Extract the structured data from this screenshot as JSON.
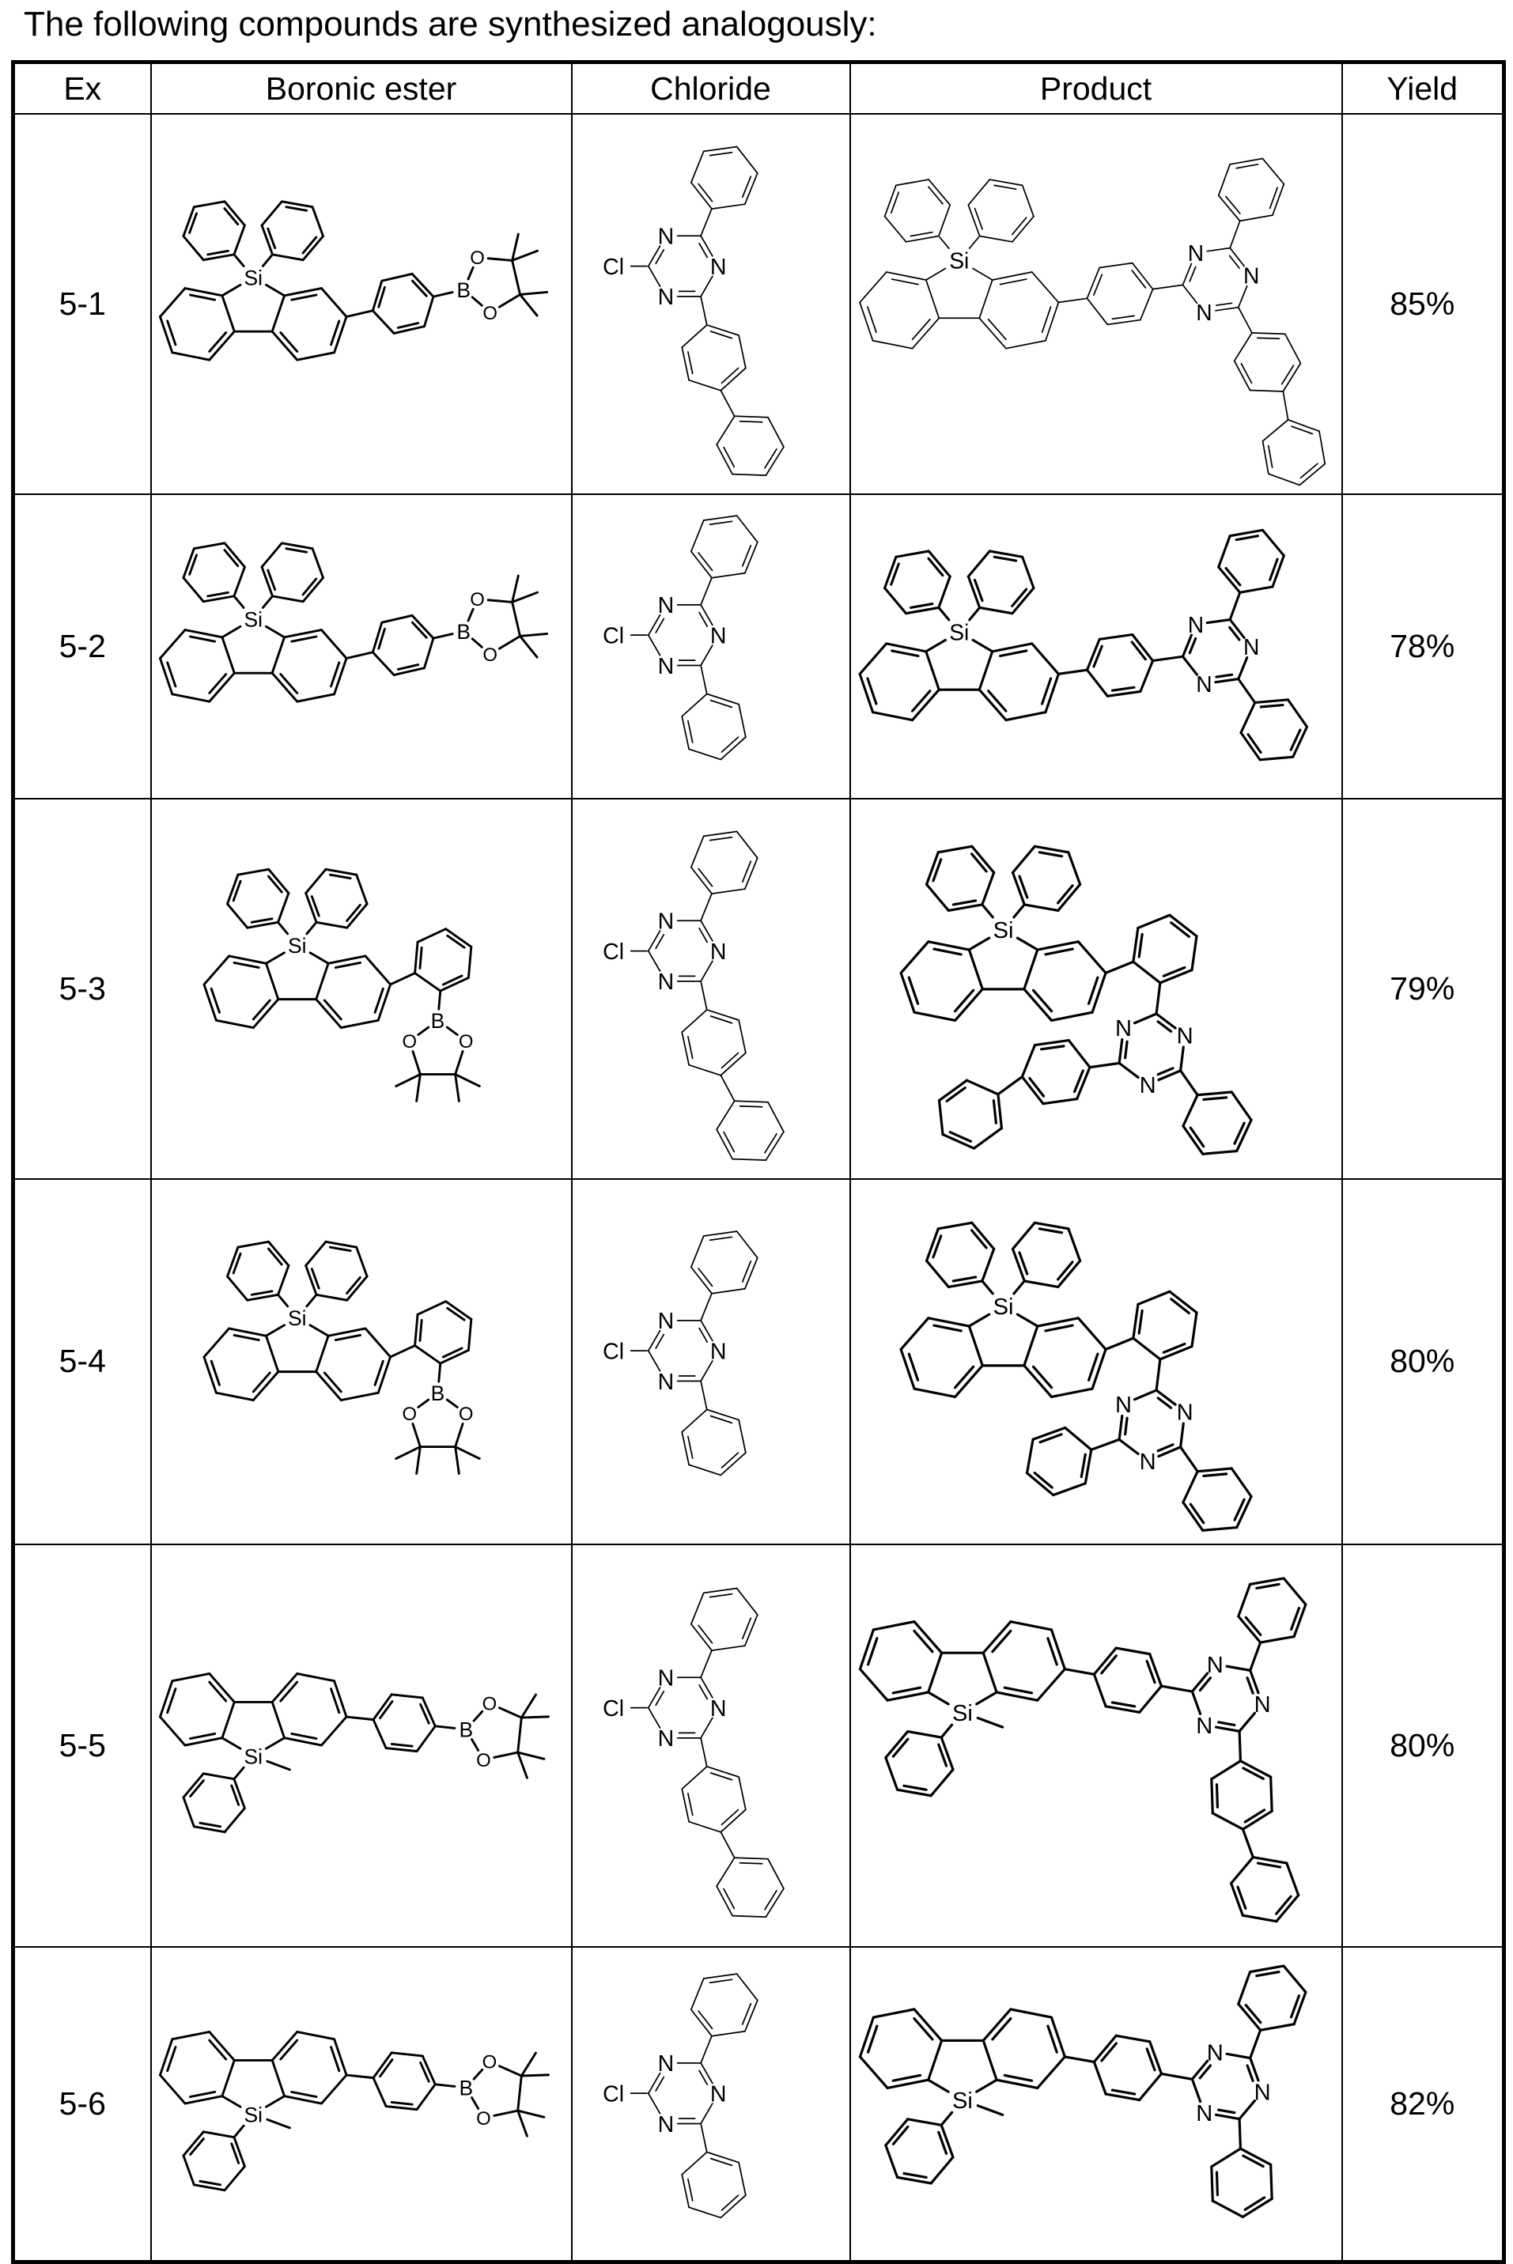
{
  "title": "The following compounds are synthesized analogously:",
  "atoms": {
    "silicon": "Si",
    "nitrogen": "N",
    "boron": "B",
    "oxygen": "O",
    "chlorine": "Cl"
  },
  "table": {
    "headers": [
      "Ex",
      "Boronic ester",
      "Chloride",
      "Product",
      "Yield"
    ],
    "rows": [
      {
        "ex": "5-1",
        "yield": "85%",
        "boronic_ester": {
          "structure_id": "si-diphenyl-para-bpin",
          "depicts": "9,9-diphenyl-9-silafluorene linked through a para-phenylene to a pinacol boronate (Bpin) group",
          "line_weight": "bold"
        },
        "chloride": {
          "structure_id": "triazine-cl-phenyl-biphenyl",
          "depicts": "2-chloro-1,3,5-triazine bearing a phenyl (top) and a biphenyl-4-yl (bottom) substituent",
          "line_weight": "thin"
        },
        "product": {
          "structure_id": "product-para-diphenyl-biphenyl",
          "depicts": "9,9-diphenyl-9-silafluorene linked via para-phenylene to a 1,3,5-triazine bearing phenyl and biphenyl-4-yl groups",
          "line_weight": "thin"
        }
      },
      {
        "ex": "5-2",
        "yield": "78%",
        "boronic_ester": {
          "structure_id": "si-diphenyl-para-bpin",
          "depicts": "9,9-diphenyl-9-silafluorene linked through a para-phenylene to a pinacol boronate (Bpin) group",
          "line_weight": "bold"
        },
        "chloride": {
          "structure_id": "triazine-cl-diphenyl",
          "depicts": "2-chloro-4,6-diphenyl-1,3,5-triazine",
          "line_weight": "thin"
        },
        "product": {
          "structure_id": "product-para-diphenyl-phenyl",
          "depicts": "9,9-diphenyl-9-silafluorene linked via para-phenylene to a 4,6-diphenyl-1,3,5-triazine",
          "line_weight": "bold"
        }
      },
      {
        "ex": "5-3",
        "yield": "79%",
        "boronic_ester": {
          "structure_id": "si-diphenyl-ortho-bpin",
          "depicts": "9,9-diphenyl-9-silafluorene bearing an ortho-substituted phenyl carrying a pinacol boronate (Bpin) group",
          "line_weight": "bold"
        },
        "chloride": {
          "structure_id": "triazine-cl-phenyl-biphenyl",
          "depicts": "2-chloro-1,3,5-triazine bearing a phenyl (top) and a biphenyl-4-yl (bottom) substituent",
          "line_weight": "thin"
        },
        "product": {
          "structure_id": "product-ortho-diphenyl-biphenyl",
          "depicts": "9,9-diphenyl-9-silafluorene with ortho-phenylene bridge to a 1,3,5-triazine bearing biphenyl-4-yl and phenyl groups",
          "line_weight": "bold"
        }
      },
      {
        "ex": "5-4",
        "yield": "80%",
        "boronic_ester": {
          "structure_id": "si-diphenyl-ortho-bpin",
          "depicts": "9,9-diphenyl-9-silafluorene bearing an ortho-substituted phenyl carrying a pinacol boronate (Bpin) group",
          "line_weight": "bold"
        },
        "chloride": {
          "structure_id": "triazine-cl-diphenyl",
          "depicts": "2-chloro-4,6-diphenyl-1,3,5-triazine",
          "line_weight": "thin"
        },
        "product": {
          "structure_id": "product-ortho-diphenyl-phenyl",
          "depicts": "9,9-diphenyl-9-silafluorene with ortho-phenylene bridge to a 4,6-diphenyl-1,3,5-triazine",
          "line_weight": "bold"
        }
      },
      {
        "ex": "5-5",
        "yield": "80%",
        "boronic_ester": {
          "structure_id": "si-phenylmethyl-para-bpin",
          "depicts": "9-methyl-9-phenyl-9-silafluorene linked through a para-phenylene to a pinacol boronate (Bpin) group",
          "line_weight": "bold"
        },
        "chloride": {
          "structure_id": "triazine-cl-phenyl-biphenyl",
          "depicts": "2-chloro-1,3,5-triazine bearing a phenyl (top) and a biphenyl-4-yl (bottom) substituent",
          "line_weight": "thin"
        },
        "product": {
          "structure_id": "product-para-phenylmethyl-biphenyl",
          "depicts": "9-methyl-9-phenyl-9-silafluorene linked via para-phenylene to a 1,3,5-triazine bearing phenyl and biphenyl-4-yl groups",
          "line_weight": "bold"
        }
      },
      {
        "ex": "5-6",
        "yield": "82%",
        "boronic_ester": {
          "structure_id": "si-phenylmethyl-para-bpin",
          "depicts": "9-methyl-9-phenyl-9-silafluorene linked through a para-phenylene to a pinacol boronate (Bpin) group",
          "line_weight": "bold"
        },
        "chloride": {
          "structure_id": "triazine-cl-diphenyl",
          "depicts": "2-chloro-4,6-diphenyl-1,3,5-triazine",
          "line_weight": "thin"
        },
        "product": {
          "structure_id": "product-para-phenylmethyl-phenyl",
          "depicts": "9-methyl-9-phenyl-9-silafluorene linked via para-phenylene to a 4,6-diphenyl-1,3,5-triazine",
          "line_weight": "bold"
        }
      }
    ]
  }
}
